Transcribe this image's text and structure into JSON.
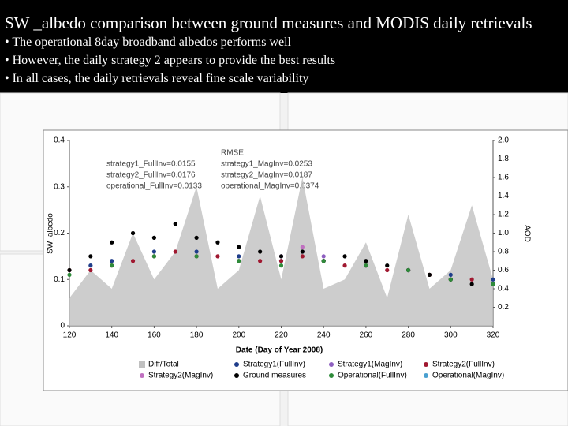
{
  "slide": {
    "title": "SW _albedo comparison between ground measures and MODIS daily retrievals",
    "bullets": [
      "• The operational 8day broadband albedos performs well",
      "• However, the daily strategy 2 appears to provide the best results",
      "• In all cases, the daily retrievals reveal fine scale variability"
    ]
  },
  "chart_data": {
    "type": "scatter",
    "xlabel": "Date (Day of Year 2008)",
    "ylabel": "SW_albedo",
    "y2label": "AOD",
    "annotations": [
      "RMSE",
      "strategy1_FullInv=0.0155",
      "strategy1_MagInv=0.0253",
      "strategy2_FullInv=0.0176",
      "strategy2_MagInv=0.0187",
      "operational_FullInv=0.0133",
      "operational_MagInv=0.0374"
    ],
    "x": [
      120,
      130,
      140,
      150,
      160,
      170,
      180,
      190,
      200,
      210,
      220,
      230,
      240,
      250,
      260,
      270,
      280,
      290,
      300,
      310,
      320
    ],
    "xlim": [
      120,
      320
    ],
    "xticks": [
      120,
      140,
      160,
      180,
      200,
      220,
      240,
      260,
      280,
      300,
      320
    ],
    "ylim": [
      0,
      0.4
    ],
    "yticks": [
      0,
      0.1,
      0.2,
      0.3,
      0.4
    ],
    "y2lim": [
      0,
      2
    ],
    "y2ticks": [
      {
        "value": 0.2,
        "label": "0.2"
      },
      {
        "value": 0.4,
        "label": "0.4"
      },
      {
        "value": 0.6,
        "label": "0.6"
      },
      {
        "value": 0.8,
        "label": "0.8"
      },
      {
        "value": 1,
        "label": "1.0"
      },
      {
        "value": 1.2,
        "label": "1.2"
      },
      {
        "value": 1.4,
        "label": "1.4"
      },
      {
        "value": 1.6,
        "label": "1.6"
      },
      {
        "value": 1.8,
        "label": "1.8"
      },
      {
        "value": 2,
        "label": "2.0"
      }
    ],
    "grid": false,
    "legend": "bottom",
    "series": [
      {
        "name": "Diff/Total",
        "color": "#c0c0c0",
        "axis": "y2",
        "kind": "area",
        "values": [
          0.3,
          0.6,
          0.4,
          1.0,
          0.5,
          0.8,
          1.5,
          0.4,
          0.6,
          1.4,
          0.5,
          1.6,
          0.4,
          0.5,
          0.9,
          0.3,
          1.2,
          0.4,
          0.6,
          1.3,
          0.5
        ]
      },
      {
        "name": "Strategy1(FullInv)",
        "color": "#1f3d8a",
        "values": [
          null,
          0.13,
          0.14,
          null,
          0.16,
          null,
          0.16,
          null,
          0.15,
          null,
          0.14,
          null,
          0.14,
          null,
          0.13,
          null,
          0.12,
          null,
          0.11,
          null,
          0.1
        ]
      },
      {
        "name": "Strategy1(MagInv)",
        "color": "#8e5fc0",
        "values": [
          null,
          null,
          null,
          null,
          null,
          null,
          null,
          null,
          null,
          null,
          0.15,
          0.16,
          0.15,
          null,
          null,
          null,
          null,
          null,
          null,
          null,
          null
        ]
      },
      {
        "name": "Strategy2(FullInv)",
        "color": "#a01830",
        "values": [
          0.12,
          0.12,
          0.13,
          0.14,
          0.15,
          0.16,
          0.15,
          0.15,
          0.14,
          0.14,
          0.14,
          0.15,
          0.14,
          0.13,
          0.13,
          0.12,
          0.12,
          0.11,
          0.1,
          0.1,
          0.09
        ]
      },
      {
        "name": "Strategy2(MagInv)",
        "color": "#c070c0",
        "values": [
          null,
          null,
          null,
          null,
          null,
          null,
          null,
          null,
          null,
          null,
          null,
          0.17,
          null,
          null,
          null,
          null,
          0.12,
          null,
          null,
          null,
          null
        ]
      },
      {
        "name": "Ground measures",
        "color": "#000000",
        "values": [
          0.12,
          0.15,
          0.18,
          0.2,
          0.19,
          0.22,
          0.19,
          0.18,
          0.17,
          0.16,
          0.15,
          0.16,
          0.14,
          0.15,
          0.14,
          0.13,
          0.12,
          0.11,
          0.1,
          0.09,
          0.09
        ]
      },
      {
        "name": "Operational(FullInv)",
        "color": "#2e8b3a",
        "values": [
          0.11,
          null,
          0.13,
          null,
          0.15,
          null,
          0.15,
          null,
          0.14,
          null,
          0.13,
          null,
          0.14,
          null,
          0.13,
          null,
          0.12,
          null,
          0.1,
          null,
          0.09
        ]
      },
      {
        "name": "Operational(MagInv)",
        "color": "#4aa0d0",
        "values": [
          null,
          null,
          null,
          null,
          null,
          null,
          null,
          null,
          null,
          null,
          null,
          null,
          null,
          null,
          null,
          null,
          null,
          null,
          null,
          null,
          null
        ]
      }
    ]
  }
}
